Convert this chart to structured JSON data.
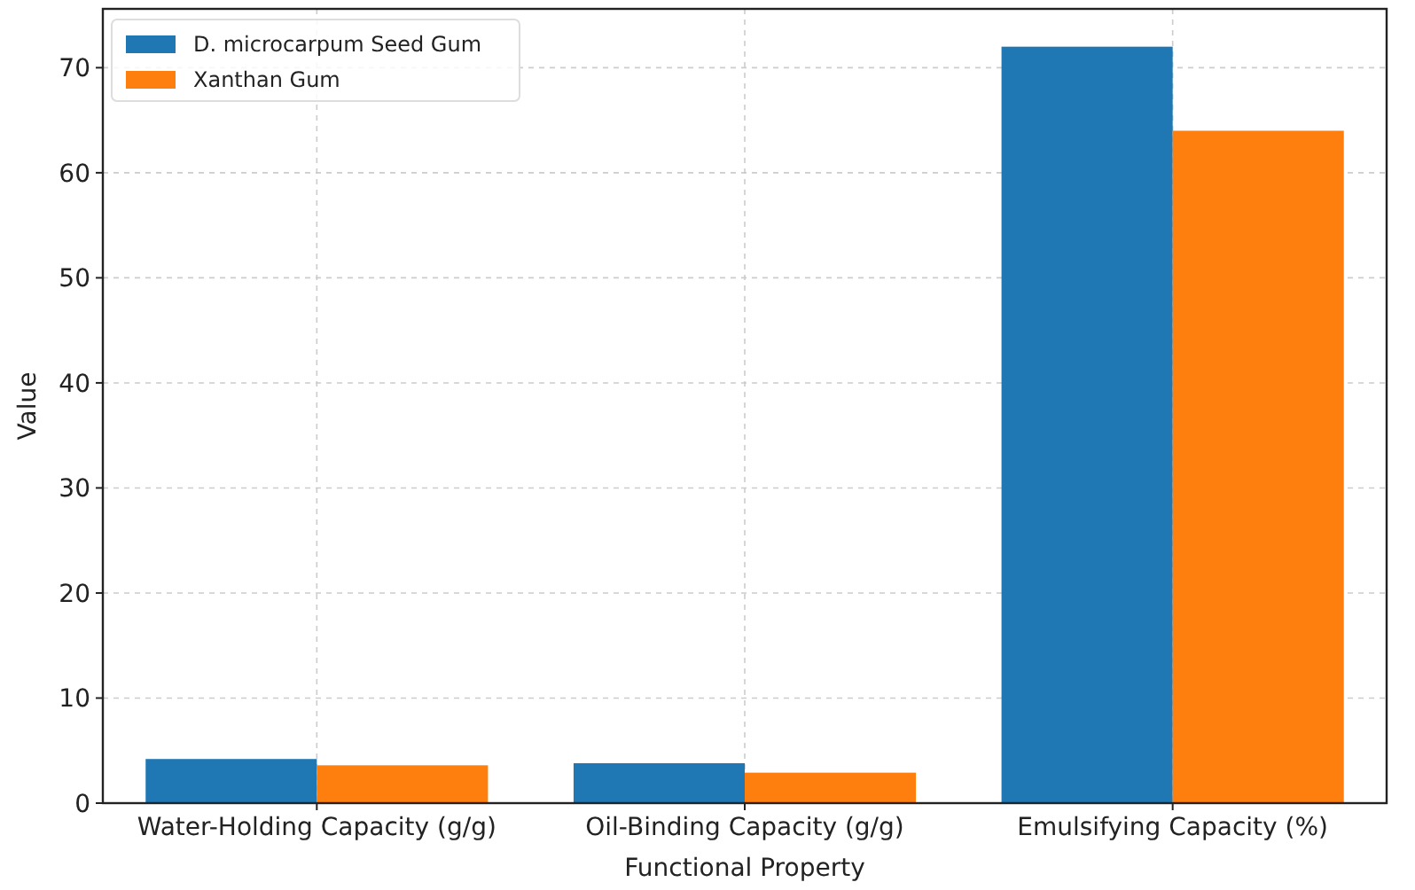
{
  "chart_data": {
    "type": "bar",
    "xlabel": "Functional Property",
    "ylabel": "Value",
    "categories": [
      "Water-Holding Capacity (g/g)",
      "Oil-Binding Capacity (g/g)",
      "Emulsifying Capacity (%)"
    ],
    "series": [
      {
        "name": "D. microcarpum Seed Gum",
        "color": "#1f77b4",
        "values": [
          4.2,
          3.8,
          72
        ]
      },
      {
        "name": "Xanthan Gum",
        "color": "#ff7f0e",
        "values": [
          3.6,
          2.9,
          64
        ]
      }
    ],
    "ylim": [
      0,
      75.6
    ],
    "yticks": [
      0,
      10,
      20,
      30,
      40,
      50,
      60,
      70
    ],
    "grid": true,
    "legend": "top left"
  }
}
